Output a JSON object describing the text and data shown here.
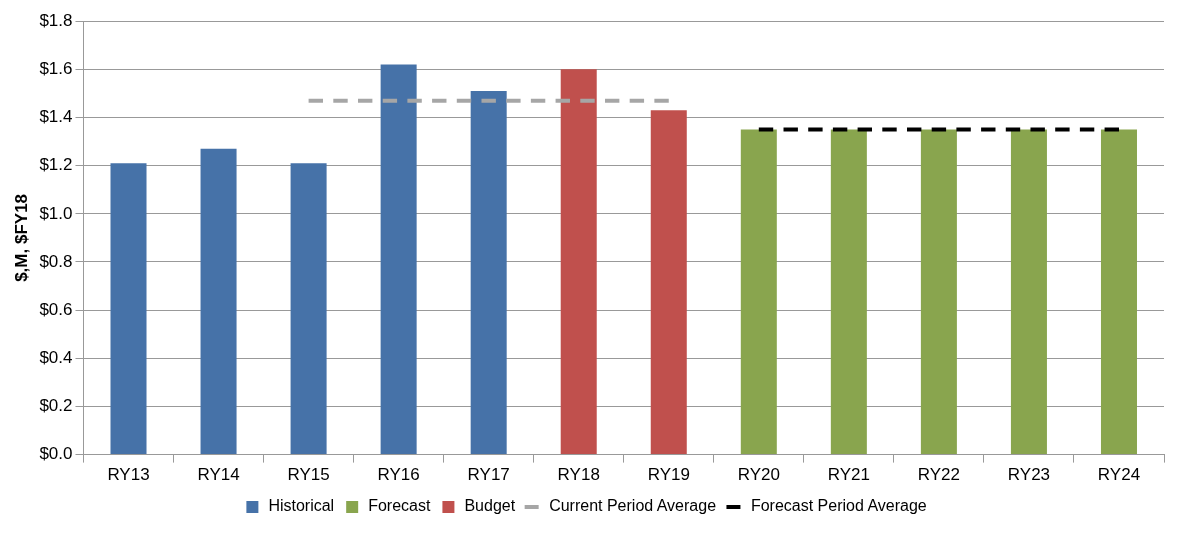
{
  "chart_data": {
    "type": "bar",
    "ylabel": "$,M, $FY18",
    "categories": [
      "RY13",
      "RY14",
      "RY15",
      "RY16",
      "RY17",
      "RY18",
      "RY19",
      "RY20",
      "RY21",
      "RY22",
      "RY23",
      "RY24"
    ],
    "series": [
      {
        "name": "Historical",
        "color": "#4672a8",
        "values": [
          1.21,
          1.27,
          1.21,
          1.62,
          1.51,
          null,
          null,
          null,
          null,
          null,
          null,
          null
        ]
      },
      {
        "name": "Forecast",
        "color": "#89a54e",
        "values": [
          null,
          null,
          null,
          null,
          null,
          null,
          null,
          1.35,
          1.35,
          1.35,
          1.35,
          1.35
        ]
      },
      {
        "name": "Budget",
        "color": "#c0504d",
        "values": [
          null,
          null,
          null,
          null,
          null,
          1.6,
          1.43,
          null,
          null,
          null,
          null,
          null
        ]
      },
      {
        "name": "Current Period Average",
        "type": "line",
        "color": "#a6a6a6",
        "line_style": "dashed",
        "marker": "none",
        "values": [
          null,
          null,
          1.47,
          1.47,
          1.47,
          1.47,
          1.47,
          null,
          null,
          null,
          null,
          null
        ]
      },
      {
        "name": "Forecast Period Average",
        "type": "line",
        "color": "#000000",
        "line_style": "dashed",
        "marker": "none",
        "values": [
          null,
          null,
          null,
          null,
          null,
          null,
          null,
          1.35,
          1.35,
          1.35,
          1.35,
          1.35
        ]
      }
    ],
    "ylim": [
      0,
      1.8
    ],
    "yticks": [
      {
        "value": 0,
        "label": "$0.0"
      },
      {
        "value": 0.2,
        "label": "$0.2"
      },
      {
        "value": 0.4,
        "label": "$0.4"
      },
      {
        "value": 0.6,
        "label": "$0.6"
      },
      {
        "value": 0.8,
        "label": "$0.8"
      },
      {
        "value": 1,
        "label": "$1.0"
      },
      {
        "value": 1.2,
        "label": "$1.2"
      },
      {
        "value": 1.4,
        "label": "$1.4"
      },
      {
        "value": 1.6,
        "label": "$1.6"
      },
      {
        "value": 1.8,
        "label": "$1.8"
      }
    ],
    "grid": "y",
    "legend": "bottom"
  }
}
